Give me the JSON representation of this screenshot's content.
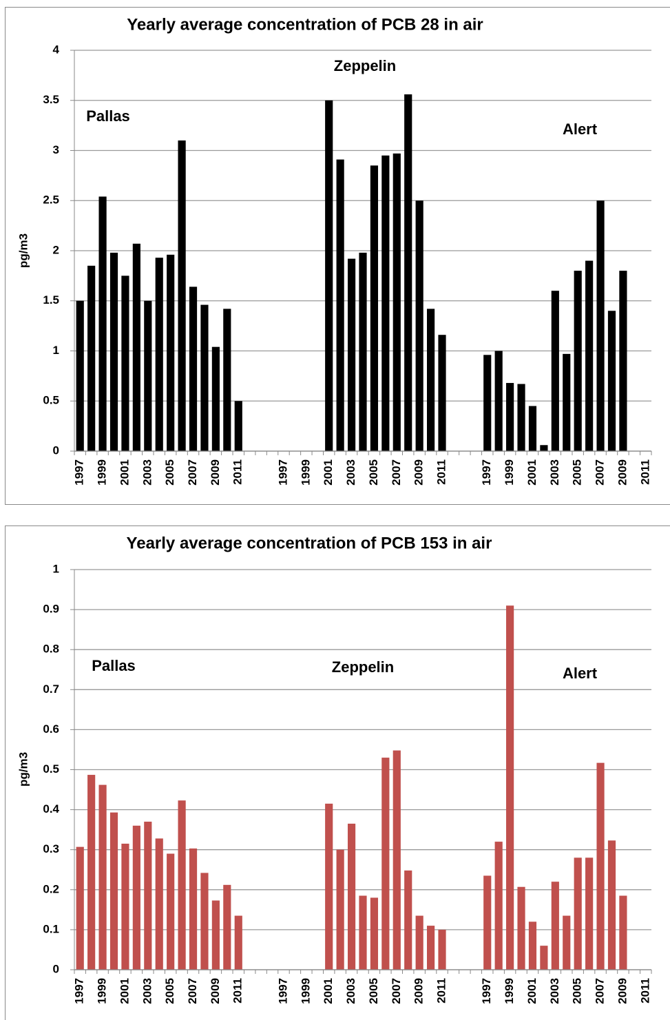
{
  "chart_data": [
    {
      "type": "bar",
      "title": "Yearly average concentration of PCB 28 in air",
      "y_label": "pg/m3",
      "annotations": [
        "Pallas",
        "Zeppelin",
        "Alert"
      ],
      "categories": [
        "1997",
        null,
        "1999",
        null,
        "2001",
        null,
        "2003",
        null,
        "2005",
        null,
        "2007",
        null,
        "2009",
        null,
        "2011",
        null,
        null,
        null,
        "1997",
        null,
        "1999",
        null,
        "2001",
        null,
        "2003",
        null,
        "2005",
        null,
        "2007",
        null,
        "2009",
        null,
        "2011",
        null,
        null,
        null,
        "1997",
        null,
        "1999",
        null,
        "2001",
        null,
        "2003",
        null,
        "2005",
        null,
        "2007",
        null,
        "2009",
        null,
        "2011"
      ],
      "values": [
        1.5,
        1.85,
        2.54,
        1.98,
        1.75,
        2.07,
        1.5,
        1.93,
        1.96,
        3.1,
        1.64,
        1.46,
        1.04,
        1.42,
        0.5,
        null,
        null,
        null,
        null,
        null,
        null,
        null,
        3.5,
        2.91,
        1.92,
        1.98,
        2.85,
        2.95,
        2.97,
        3.56,
        2.5,
        1.42,
        1.16,
        null,
        null,
        null,
        0.96,
        1.0,
        0.68,
        0.67,
        0.45,
        0.06,
        1.6,
        0.97,
        1.8,
        1.9,
        2.5,
        1.4,
        1.8,
        null,
        null
      ],
      "color": "#000000",
      "ylim": [
        0,
        4
      ],
      "yticks": [
        0,
        0.5,
        1,
        1.5,
        2,
        2.5,
        3,
        3.5,
        4
      ],
      "grid": true
    },
    {
      "type": "bar",
      "title": "Yearly average concentration of PCB 153 in air",
      "y_label": "pg/m3",
      "annotations": [
        "Pallas",
        "Zeppelin",
        "Alert"
      ],
      "categories": [
        "1997",
        null,
        "1999",
        null,
        "2001",
        null,
        "2003",
        null,
        "2005",
        null,
        "2007",
        null,
        "2009",
        null,
        "2011",
        null,
        null,
        null,
        "1997",
        null,
        "1999",
        null,
        "2001",
        null,
        "2003",
        null,
        "2005",
        null,
        "2007",
        null,
        "2009",
        null,
        "2011",
        null,
        null,
        null,
        "1997",
        null,
        "1999",
        null,
        "2001",
        null,
        "2003",
        null,
        "2005",
        null,
        "2007",
        null,
        "2009",
        null,
        "2011"
      ],
      "values": [
        0.307,
        0.487,
        0.462,
        0.393,
        0.315,
        0.36,
        0.37,
        0.328,
        0.29,
        0.423,
        0.303,
        0.242,
        0.173,
        0.212,
        0.135,
        null,
        null,
        null,
        null,
        null,
        null,
        null,
        0.415,
        0.3,
        0.365,
        0.185,
        0.18,
        0.53,
        0.548,
        0.248,
        0.135,
        0.11,
        0.1,
        null,
        null,
        null,
        0.235,
        0.32,
        0.91,
        0.207,
        0.12,
        0.06,
        0.22,
        0.135,
        0.28,
        0.28,
        0.517,
        0.323,
        0.185,
        null,
        null
      ],
      "color": "#c0504d",
      "ylim": [
        0,
        1
      ],
      "yticks": [
        0,
        0.1,
        0.2,
        0.3,
        0.4,
        0.5,
        0.6,
        0.7,
        0.8,
        0.9,
        1
      ],
      "grid": true
    }
  ]
}
